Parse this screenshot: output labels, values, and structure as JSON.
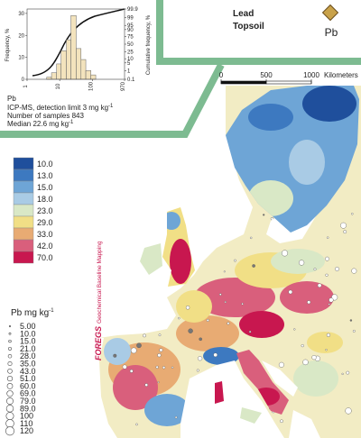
{
  "inset": {
    "histogram": {
      "type": "histogram",
      "bins": [
        4,
        5.6,
        8,
        11,
        16,
        22,
        32,
        45,
        63,
        90,
        127
      ],
      "values": [
        1,
        3,
        7,
        13,
        18,
        29,
        14,
        9,
        4,
        2
      ],
      "color": "#f3e3bd",
      "xscale": "log",
      "xlim": [
        1,
        970
      ],
      "xticks": [
        1,
        10,
        100,
        970
      ],
      "ylim": [
        0,
        32
      ],
      "yticks": [
        0,
        10,
        20,
        30
      ],
      "ylabel": "Frequency, %",
      "y2scale": "probability",
      "y2lim": [
        0.1,
        99.9
      ],
      "y2ticks": [
        99.9,
        99,
        95,
        90,
        75,
        50,
        25,
        10,
        5,
        1,
        0.1
      ],
      "y2label": "Cumulative frequency, %"
    },
    "element": "Pb",
    "method": {
      "text": "ICP-MS, detection limit 3 mg kg",
      "sup": "-1"
    },
    "samples": "Number of samples 843",
    "median": {
      "text": "Median 22.6 mg kg",
      "sup": "-1"
    }
  },
  "header": {
    "title": "Lead",
    "subtitle": "Topsoil",
    "symbol": "Pb"
  },
  "scale_bar": {
    "ticks": [
      0,
      500,
      1000
    ],
    "unit": "Kilometers"
  },
  "legend": {
    "classes": [
      {
        "label": "10.0",
        "color": "#1f4f9c"
      },
      {
        "label": "13.0",
        "color": "#3d79c0"
      },
      {
        "label": "15.0",
        "color": "#6ea5d6"
      },
      {
        "label": "18.0",
        "color": "#a9cbe5"
      },
      {
        "label": "23.0",
        "color": "#d9e8c6"
      },
      {
        "label": "29.0",
        "color": "#f1df86"
      },
      {
        "label": "33.0",
        "color": "#e8ab73"
      },
      {
        "label": "42.0",
        "color": "#d95f7c"
      },
      {
        "label": "70.0",
        "color": "#c8174f"
      }
    ],
    "unit": {
      "text": "Pb mg kg",
      "sup": "-1"
    },
    "sizes": [
      "5.00",
      "10.0",
      "15.0",
      "21.0",
      "28.0",
      "35.0",
      "43.0",
      "51.0",
      "60.0",
      "69.0",
      "79.0",
      "89.0",
      "100",
      "110",
      "120"
    ]
  },
  "credit": {
    "logo": "FOREGS",
    "text": "Geochemical Baseline Mapping"
  }
}
